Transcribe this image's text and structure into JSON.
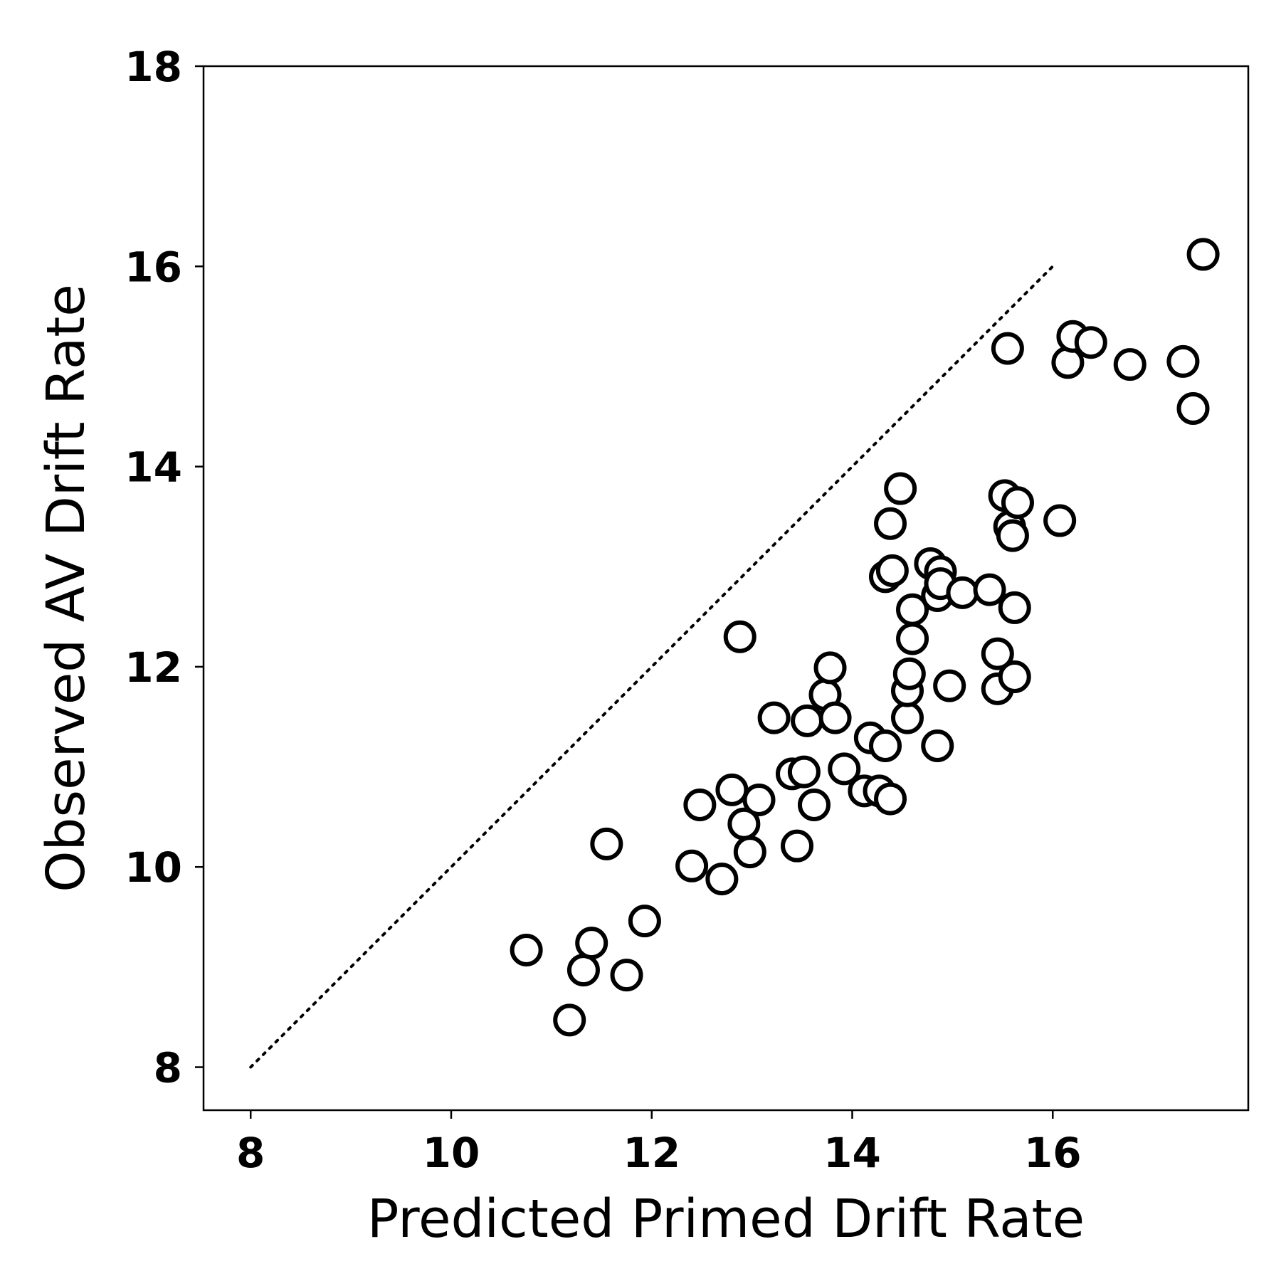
{
  "chart_data": {
    "type": "scatter",
    "title": "",
    "xlabel": "Predicted Primed Drift Rate",
    "ylabel": "Observed AV Drift Rate",
    "xlim": [
      7.53,
      17.95
    ],
    "ylim": [
      7.57,
      18.0
    ],
    "xticks": [
      "8",
      "10",
      "12",
      "14",
      "16"
    ],
    "yticks": [
      "8",
      "10",
      "12",
      "14",
      "16",
      "18"
    ],
    "grid": false,
    "legend": "none",
    "reference_line": {
      "style": "dotted",
      "x": [
        8,
        16
      ],
      "y": [
        8,
        16
      ]
    },
    "marker": {
      "shape": "circle",
      "fill": "#ffffff",
      "stroke": "#000000"
    },
    "series": [
      {
        "points": [
          [
            10.75,
            9.17
          ],
          [
            11.18,
            8.47
          ],
          [
            11.32,
            8.97
          ],
          [
            11.4,
            9.24
          ],
          [
            11.55,
            10.23
          ],
          [
            11.75,
            8.92
          ],
          [
            11.93,
            9.46
          ],
          [
            12.4,
            10.01
          ],
          [
            12.48,
            10.62
          ],
          [
            12.7,
            9.88
          ],
          [
            12.8,
            10.77
          ],
          [
            12.88,
            12.3
          ],
          [
            12.92,
            10.43
          ],
          [
            12.98,
            10.15
          ],
          [
            13.07,
            10.67
          ],
          [
            13.22,
            11.49
          ],
          [
            13.4,
            10.93
          ],
          [
            13.45,
            10.21
          ],
          [
            13.52,
            10.95
          ],
          [
            13.55,
            11.46
          ],
          [
            13.62,
            10.62
          ],
          [
            13.73,
            11.72
          ],
          [
            13.78,
            11.99
          ],
          [
            13.83,
            11.49
          ],
          [
            13.92,
            10.98
          ],
          [
            14.12,
            10.76
          ],
          [
            14.18,
            11.29
          ],
          [
            14.27,
            10.76
          ],
          [
            14.33,
            11.21
          ],
          [
            14.33,
            12.9
          ],
          [
            14.38,
            10.68
          ],
          [
            14.38,
            13.43
          ],
          [
            14.4,
            12.96
          ],
          [
            14.48,
            13.78
          ],
          [
            14.55,
            11.49
          ],
          [
            14.55,
            11.76
          ],
          [
            14.57,
            11.93
          ],
          [
            14.6,
            12.57
          ],
          [
            14.6,
            12.28
          ],
          [
            14.78,
            13.03
          ],
          [
            14.85,
            11.21
          ],
          [
            14.85,
            12.71
          ],
          [
            14.88,
            12.95
          ],
          [
            14.88,
            12.83
          ],
          [
            14.97,
            11.81
          ],
          [
            15.1,
            12.74
          ],
          [
            15.37,
            12.77
          ],
          [
            15.45,
            11.78
          ],
          [
            15.45,
            12.13
          ],
          [
            15.52,
            13.71
          ],
          [
            15.55,
            15.18
          ],
          [
            15.57,
            13.4
          ],
          [
            15.6,
            13.31
          ],
          [
            15.62,
            12.59
          ],
          [
            15.62,
            11.9
          ],
          [
            15.65,
            13.64
          ],
          [
            16.07,
            13.46
          ],
          [
            16.15,
            15.04
          ],
          [
            16.2,
            15.3
          ],
          [
            16.38,
            15.24
          ],
          [
            16.77,
            15.02
          ],
          [
            17.3,
            15.05
          ],
          [
            17.4,
            14.58
          ],
          [
            17.5,
            16.12
          ]
        ]
      }
    ]
  }
}
